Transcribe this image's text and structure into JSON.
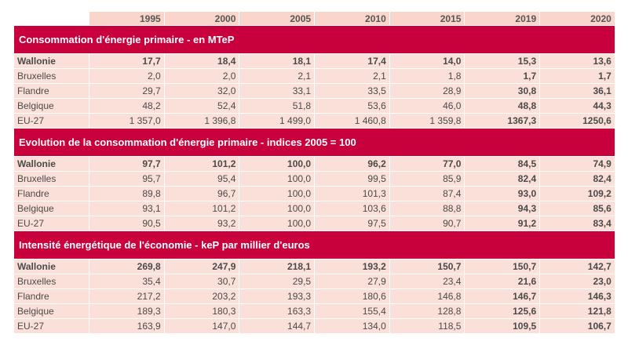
{
  "years": [
    "1995",
    "2000",
    "2005",
    "2010",
    "2015",
    "2019",
    "2020"
  ],
  "sections": [
    {
      "title": "Consommation d'énergie primaire - en MTeP",
      "rows": [
        {
          "label": "Wallonie",
          "values": [
            "17,7",
            "18,4",
            "18,1",
            "17,4",
            "14,0",
            "15,3",
            "13,6"
          ]
        },
        {
          "label": "Bruxelles",
          "values": [
            "2,0",
            "2,0",
            "2,1",
            "2,1",
            "1,8",
            "1,7",
            "1,7"
          ]
        },
        {
          "label": "Flandre",
          "values": [
            "29,7",
            "32,0",
            "33,1",
            "33,5",
            "28,9",
            "30,8",
            "36,1"
          ]
        },
        {
          "label": "Belgique",
          "values": [
            "48,2",
            "52,4",
            "51,8",
            "53,6",
            "46,0",
            "48,8",
            "44,3"
          ]
        },
        {
          "label": "EU-27",
          "values": [
            "1 357,0",
            "1 396,8",
            "1 499,0",
            "1 460,8",
            "1 359,8",
            "1367,3",
            "1250,6"
          ]
        }
      ]
    },
    {
      "title": "Evolution de la consommation d'énergie primaire - indices 2005 = 100",
      "rows": [
        {
          "label": "Wallonie",
          "values": [
            "97,7",
            "101,2",
            "100,0",
            "96,2",
            "77,0",
            "84,5",
            "74,9"
          ]
        },
        {
          "label": "Bruxelles",
          "values": [
            "95,7",
            "95,4",
            "100,0",
            "99,5",
            "85,9",
            "82,4",
            "82,4"
          ]
        },
        {
          "label": "Flandre",
          "values": [
            "89,8",
            "96,7",
            "100,0",
            "101,3",
            "87,4",
            "93,0",
            "109,2"
          ]
        },
        {
          "label": "Belgique",
          "values": [
            "93,1",
            "101,2",
            "100,0",
            "103,6",
            "88,8",
            "94,3",
            "85,6"
          ]
        },
        {
          "label": "EU-27",
          "values": [
            "90,5",
            "93,2",
            "100,0",
            "97,5",
            "90,7",
            "91,2",
            "83,4"
          ]
        }
      ]
    },
    {
      "title": "Intensité énergétique de l'économie - keP par millier d'euros",
      "rows": [
        {
          "label": "Wallonie",
          "values": [
            "269,8",
            "247,9",
            "218,1",
            "193,2",
            "150,7",
            "150,7",
            "142,7"
          ]
        },
        {
          "label": "Bruxelles",
          "values": [
            "35,4",
            "30,7",
            "29,5",
            "27,9",
            "23,4",
            "21,6",
            "23,0"
          ]
        },
        {
          "label": "Flandre",
          "values": [
            "217,2",
            "203,2",
            "193,3",
            "180,6",
            "146,8",
            "146,7",
            "146,3"
          ]
        },
        {
          "label": "Belgique",
          "values": [
            "189,3",
            "180,3",
            "163,3",
            "155,4",
            "128,8",
            "125,6",
            "121,8"
          ]
        },
        {
          "label": "EU-27",
          "values": [
            "163,9",
            "147,0",
            "144,7",
            "134,0",
            "118,5",
            "109,5",
            "106,7"
          ]
        }
      ]
    }
  ],
  "colors": {
    "section_header": "#c8003c",
    "cell_background": "#fbe0d9",
    "year_header_background": "#f9d5cc"
  }
}
